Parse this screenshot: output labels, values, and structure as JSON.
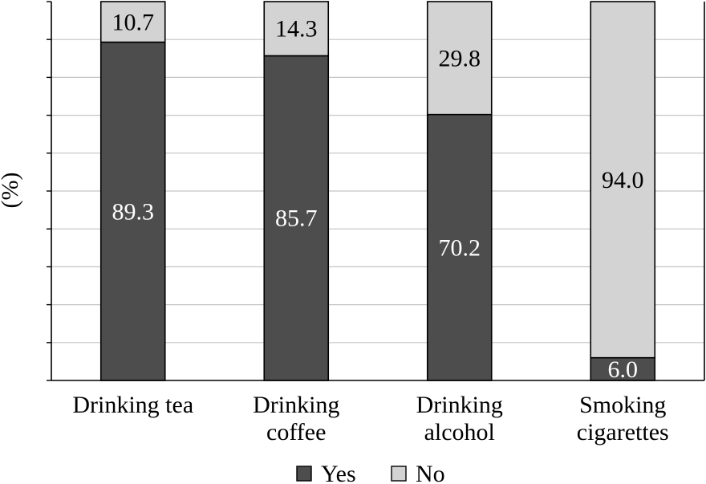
{
  "chart_data": {
    "type": "bar",
    "stacked": true,
    "title": "",
    "xlabel": "",
    "ylabel": "(%)",
    "ylim": [
      0,
      100
    ],
    "grid": true,
    "legend_position": "bottom",
    "categories": [
      [
        "Drinking tea"
      ],
      [
        "Drinking",
        "coffee"
      ],
      [
        "Drinking",
        "alcohol"
      ],
      [
        "Smoking",
        "cigarettes"
      ]
    ],
    "series": [
      {
        "name": "Yes",
        "color": "#4d4d4d",
        "label_color": "#ffffff",
        "values": [
          89.3,
          85.7,
          70.2,
          6.0
        ],
        "labels": [
          "89.3",
          "85.7",
          "70.2",
          "6.0"
        ]
      },
      {
        "name": "No",
        "color": "#d3d3d3",
        "label_color": "#000000",
        "values": [
          10.7,
          14.3,
          29.8,
          94.0
        ],
        "labels": [
          "10.7",
          "14.3",
          "29.8",
          "94.0"
        ]
      }
    ]
  }
}
